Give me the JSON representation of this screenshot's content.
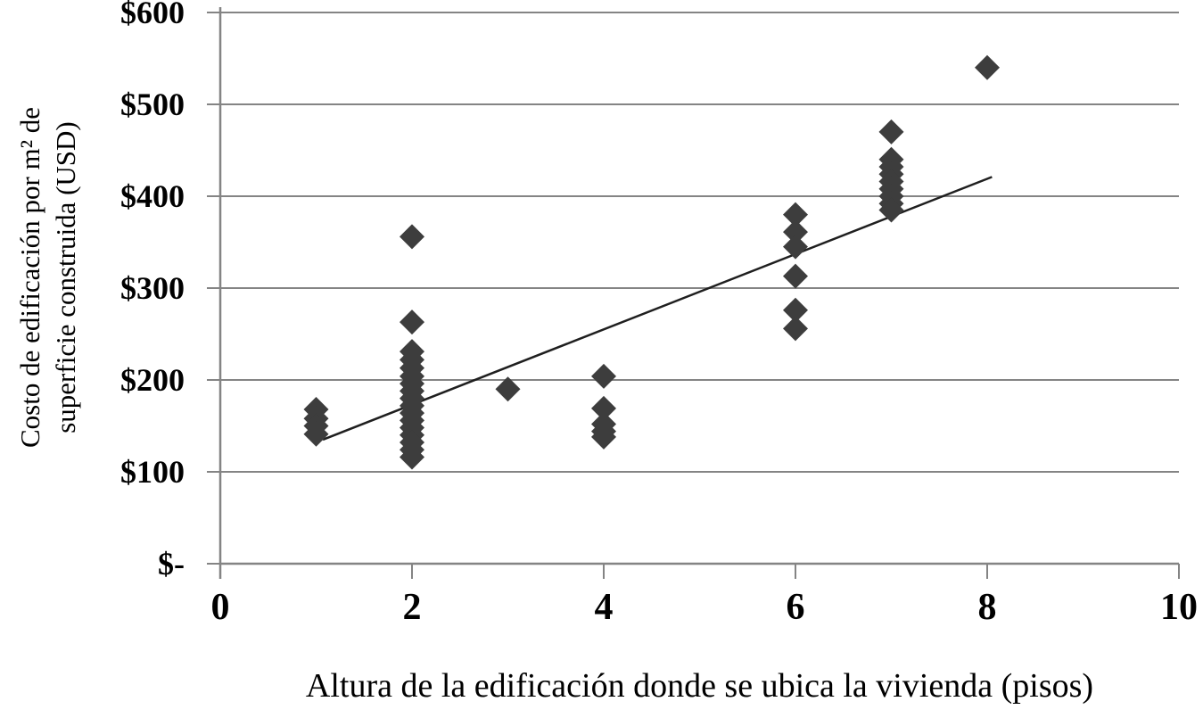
{
  "chart_data": {
    "type": "scatter",
    "title": "",
    "xlabel": "Altura de la edificación donde se ubica la vivienda (pisos)",
    "ylabel_lines": [
      "Costo de edificación por m² de",
      "superficie construida (USD)"
    ],
    "xlim": [
      0,
      10
    ],
    "ylim": [
      0,
      600
    ],
    "grid": "horizontal-only",
    "legend": "none",
    "marker": "diamond",
    "x_ticks": [
      {
        "value": 0,
        "label": "0"
      },
      {
        "value": 2,
        "label": "2"
      },
      {
        "value": 4,
        "label": "4"
      },
      {
        "value": 6,
        "label": "6"
      },
      {
        "value": 8,
        "label": "8"
      },
      {
        "value": 10,
        "label": "10"
      }
    ],
    "y_ticks": [
      {
        "value": 0,
        "label": "$-"
      },
      {
        "value": 100,
        "label": "$100"
      },
      {
        "value": 200,
        "label": "$200"
      },
      {
        "value": 300,
        "label": "$300"
      },
      {
        "value": 400,
        "label": "$400"
      },
      {
        "value": 500,
        "label": "$500"
      },
      {
        "value": 600,
        "label": "$600"
      }
    ],
    "series": [
      {
        "name": "costo-por-m2-vs-altura",
        "points": [
          [
            1,
            168
          ],
          [
            1,
            158
          ],
          [
            1,
            150
          ],
          [
            1,
            141
          ],
          [
            2,
            356
          ],
          [
            2,
            263
          ],
          [
            2,
            231
          ],
          [
            2,
            222
          ],
          [
            2,
            213
          ],
          [
            2,
            204
          ],
          [
            2,
            196
          ],
          [
            2,
            188
          ],
          [
            2,
            180
          ],
          [
            2,
            172
          ],
          [
            2,
            164
          ],
          [
            2,
            156
          ],
          [
            2,
            148
          ],
          [
            2,
            140
          ],
          [
            2,
            132
          ],
          [
            2,
            124
          ],
          [
            2,
            116
          ],
          [
            3,
            190
          ],
          [
            4,
            204
          ],
          [
            4,
            169
          ],
          [
            4,
            152
          ],
          [
            4,
            144
          ],
          [
            4,
            138
          ],
          [
            6,
            380
          ],
          [
            6,
            361
          ],
          [
            6,
            345
          ],
          [
            6,
            313
          ],
          [
            6,
            276
          ],
          [
            6,
            256
          ],
          [
            7,
            470
          ],
          [
            7,
            440
          ],
          [
            7,
            432
          ],
          [
            7,
            424
          ],
          [
            7,
            416
          ],
          [
            7,
            408
          ],
          [
            7,
            400
          ],
          [
            7,
            392
          ],
          [
            7,
            385
          ],
          [
            8,
            540
          ]
        ]
      }
    ],
    "trendline": {
      "x1": 1.07,
      "y1": 135,
      "x2": 8.05,
      "y2": 421
    },
    "colors": {
      "marker": "#3d3d3d",
      "trendline": "#1f1f1f",
      "grid": "#848484",
      "axis": "#848484",
      "text": "#000000"
    }
  }
}
